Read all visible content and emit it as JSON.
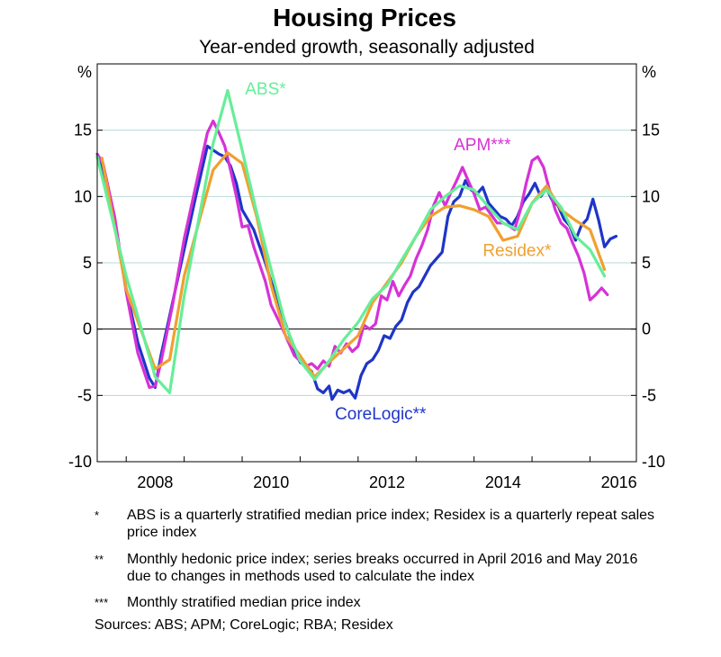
{
  "title": "Housing Prices",
  "subtitle": "Year-ended growth, seasonally adjusted",
  "chart_data": {
    "type": "line",
    "title": "Housing Prices",
    "subtitle": "Year-ended growth, seasonally adjusted",
    "ylabel_left": "%",
    "ylabel_right": "%",
    "ylim": [
      -10,
      20
    ],
    "xlim": [
      2007.5,
      2016.8
    ],
    "yticks": [
      -10,
      -5,
      0,
      5,
      10,
      15
    ],
    "ytick_labels": [
      "-10",
      "-5",
      "0",
      "5",
      "10",
      "15"
    ],
    "xticks": [
      2008,
      2010,
      2012,
      2014,
      2016
    ],
    "xtick_labels": [
      "2008",
      "2010",
      "2012",
      "2014",
      "2016"
    ],
    "grid": "horizontal",
    "series": [
      {
        "name": "CoreLogic**",
        "color": "#1f35c8",
        "points": [
          [
            2007.5,
            13
          ],
          [
            2007.6,
            12
          ],
          [
            2007.8,
            8
          ],
          [
            2008.0,
            3
          ],
          [
            2008.2,
            -1
          ],
          [
            2008.4,
            -3.7
          ],
          [
            2008.5,
            -4.4
          ],
          [
            2008.6,
            -2
          ],
          [
            2008.8,
            2
          ],
          [
            2009.0,
            6
          ],
          [
            2009.2,
            10
          ],
          [
            2009.4,
            13.8
          ],
          [
            2009.5,
            13.5
          ],
          [
            2009.6,
            13.2
          ],
          [
            2009.7,
            13
          ],
          [
            2009.8,
            12.3
          ],
          [
            2009.9,
            11
          ],
          [
            2010.0,
            9
          ],
          [
            2010.2,
            7.5
          ],
          [
            2010.4,
            5
          ],
          [
            2010.5,
            3.6
          ],
          [
            2010.7,
            1
          ],
          [
            2010.9,
            -1.5
          ],
          [
            2011.0,
            -2.5
          ],
          [
            2011.1,
            -2.8
          ],
          [
            2011.2,
            -3.2
          ],
          [
            2011.3,
            -4.5
          ],
          [
            2011.4,
            -4.8
          ],
          [
            2011.5,
            -4.3
          ],
          [
            2011.55,
            -5.3
          ],
          [
            2011.65,
            -4.6
          ],
          [
            2011.75,
            -4.8
          ],
          [
            2011.85,
            -4.6
          ],
          [
            2011.95,
            -5.2
          ],
          [
            2012.05,
            -3.5
          ],
          [
            2012.15,
            -2.6
          ],
          [
            2012.25,
            -2.3
          ],
          [
            2012.35,
            -1.6
          ],
          [
            2012.45,
            -0.5
          ],
          [
            2012.55,
            -0.7
          ],
          [
            2012.65,
            0.2
          ],
          [
            2012.75,
            0.7
          ],
          [
            2012.85,
            2
          ],
          [
            2012.95,
            2.8
          ],
          [
            2013.05,
            3.2
          ],
          [
            2013.15,
            4
          ],
          [
            2013.25,
            4.8
          ],
          [
            2013.35,
            5.3
          ],
          [
            2013.45,
            5.8
          ],
          [
            2013.55,
            8.5
          ],
          [
            2013.65,
            9.6
          ],
          [
            2013.75,
            10
          ],
          [
            2013.85,
            11.2
          ],
          [
            2013.95,
            10.5
          ],
          [
            2014.05,
            10.2
          ],
          [
            2014.15,
            10.7
          ],
          [
            2014.25,
            9.5
          ],
          [
            2014.35,
            9
          ],
          [
            2014.45,
            8.5
          ],
          [
            2014.55,
            8.3
          ],
          [
            2014.65,
            7.8
          ],
          [
            2014.75,
            8.5
          ],
          [
            2014.85,
            9.6
          ],
          [
            2014.95,
            10.2
          ],
          [
            2015.05,
            11
          ],
          [
            2015.15,
            10
          ],
          [
            2015.25,
            10.6
          ],
          [
            2015.35,
            9.7
          ],
          [
            2015.45,
            9.3
          ],
          [
            2015.55,
            8.3
          ],
          [
            2015.65,
            7.8
          ],
          [
            2015.75,
            6.7
          ],
          [
            2015.85,
            7.8
          ],
          [
            2015.95,
            8.3
          ],
          [
            2016.05,
            9.8
          ],
          [
            2016.15,
            8.2
          ],
          [
            2016.25,
            6.2
          ],
          [
            2016.35,
            6.8
          ],
          [
            2016.45,
            7
          ]
        ]
      },
      {
        "name": "APM***",
        "color": "#d632d6",
        "points": [
          [
            2007.5,
            13.2
          ],
          [
            2007.6,
            12.5
          ],
          [
            2007.8,
            8.5
          ],
          [
            2008.0,
            2.8
          ],
          [
            2008.2,
            -1.8
          ],
          [
            2008.4,
            -4.4
          ],
          [
            2008.5,
            -4.3
          ],
          [
            2008.6,
            -2.5
          ],
          [
            2008.8,
            1.8
          ],
          [
            2009.0,
            6.8
          ],
          [
            2009.2,
            10.8
          ],
          [
            2009.4,
            14.8
          ],
          [
            2009.5,
            15.7
          ],
          [
            2009.6,
            14.8
          ],
          [
            2009.7,
            13.8
          ],
          [
            2009.8,
            12
          ],
          [
            2009.9,
            10
          ],
          [
            2010.0,
            7.7
          ],
          [
            2010.1,
            7.8
          ],
          [
            2010.2,
            6.2
          ],
          [
            2010.4,
            3.6
          ],
          [
            2010.5,
            1.8
          ],
          [
            2010.7,
            0
          ],
          [
            2010.9,
            -2
          ],
          [
            2011.0,
            -2.4
          ],
          [
            2011.1,
            -2.8
          ],
          [
            2011.2,
            -2.6
          ],
          [
            2011.3,
            -3
          ],
          [
            2011.4,
            -2.4
          ],
          [
            2011.5,
            -2.8
          ],
          [
            2011.6,
            -1.3
          ],
          [
            2011.7,
            -1.8
          ],
          [
            2011.8,
            -1.1
          ],
          [
            2011.9,
            -1.7
          ],
          [
            2012.0,
            -1.3
          ],
          [
            2012.1,
            0.3
          ],
          [
            2012.2,
            0
          ],
          [
            2012.3,
            0.4
          ],
          [
            2012.4,
            2.5
          ],
          [
            2012.5,
            2.2
          ],
          [
            2012.6,
            3.6
          ],
          [
            2012.7,
            2.5
          ],
          [
            2012.8,
            3.3
          ],
          [
            2012.9,
            4
          ],
          [
            2013.0,
            5.3
          ],
          [
            2013.1,
            6.3
          ],
          [
            2013.2,
            7.5
          ],
          [
            2013.3,
            9.3
          ],
          [
            2013.4,
            10.3
          ],
          [
            2013.5,
            9.3
          ],
          [
            2013.6,
            10.3
          ],
          [
            2013.7,
            11.2
          ],
          [
            2013.8,
            12.2
          ],
          [
            2013.9,
            11.2
          ],
          [
            2014.0,
            10.2
          ],
          [
            2014.1,
            9
          ],
          [
            2014.2,
            9.2
          ],
          [
            2014.3,
            8.6
          ],
          [
            2014.4,
            8
          ],
          [
            2014.5,
            8
          ],
          [
            2014.6,
            7.8
          ],
          [
            2014.7,
            7.5
          ],
          [
            2014.8,
            9
          ],
          [
            2014.9,
            11
          ],
          [
            2015.0,
            12.7
          ],
          [
            2015.1,
            13
          ],
          [
            2015.2,
            12.2
          ],
          [
            2015.3,
            10.5
          ],
          [
            2015.4,
            9
          ],
          [
            2015.5,
            8
          ],
          [
            2015.6,
            7.6
          ],
          [
            2015.7,
            6.5
          ],
          [
            2015.8,
            5.5
          ],
          [
            2015.9,
            4.2
          ],
          [
            2016.0,
            2.2
          ],
          [
            2016.1,
            2.6
          ],
          [
            2016.2,
            3.1
          ],
          [
            2016.3,
            2.6
          ]
        ]
      },
      {
        "name": "Residex*",
        "color": "#f0a030",
        "points": [
          [
            2007.58,
            12.9
          ],
          [
            2008.0,
            3
          ],
          [
            2008.5,
            -3
          ],
          [
            2008.75,
            -2.3
          ],
          [
            2009.0,
            4
          ],
          [
            2009.5,
            12
          ],
          [
            2009.75,
            13.3
          ],
          [
            2010.0,
            12.5
          ],
          [
            2010.25,
            8.5
          ],
          [
            2010.5,
            3.3
          ],
          [
            2010.75,
            -0.5
          ],
          [
            2011.0,
            -2
          ],
          [
            2011.25,
            -3.6
          ],
          [
            2011.5,
            -2.5
          ],
          [
            2011.75,
            -1.5
          ],
          [
            2012.0,
            -0.5
          ],
          [
            2012.25,
            2
          ],
          [
            2012.5,
            3.5
          ],
          [
            2012.75,
            5
          ],
          [
            2013.0,
            7
          ],
          [
            2013.25,
            8.5
          ],
          [
            2013.5,
            9.2
          ],
          [
            2013.75,
            9.3
          ],
          [
            2014.0,
            9
          ],
          [
            2014.25,
            8.5
          ],
          [
            2014.5,
            6.7
          ],
          [
            2014.75,
            7
          ],
          [
            2015.0,
            9.5
          ],
          [
            2015.25,
            10.8
          ],
          [
            2015.5,
            9
          ],
          [
            2015.75,
            8.2
          ],
          [
            2016.0,
            7.5
          ],
          [
            2016.25,
            4.5
          ]
        ]
      },
      {
        "name": "ABS*",
        "color": "#66ee99",
        "points": [
          [
            2007.5,
            13
          ],
          [
            2008.0,
            4
          ],
          [
            2008.5,
            -3.6
          ],
          [
            2008.75,
            -4.8
          ],
          [
            2009.0,
            2.5
          ],
          [
            2009.5,
            14
          ],
          [
            2009.75,
            18
          ],
          [
            2010.0,
            13.5
          ],
          [
            2010.25,
            8.8
          ],
          [
            2010.5,
            4.5
          ],
          [
            2010.75,
            0.3
          ],
          [
            2011.0,
            -2.4
          ],
          [
            2011.25,
            -3.8
          ],
          [
            2011.5,
            -2.4
          ],
          [
            2011.75,
            -0.8
          ],
          [
            2012.0,
            0.5
          ],
          [
            2012.25,
            2.3
          ],
          [
            2012.5,
            3.3
          ],
          [
            2012.75,
            5.2
          ],
          [
            2013.0,
            7
          ],
          [
            2013.25,
            9
          ],
          [
            2013.5,
            10
          ],
          [
            2013.75,
            10.8
          ],
          [
            2014.0,
            10.5
          ],
          [
            2014.25,
            9.2
          ],
          [
            2014.5,
            8
          ],
          [
            2014.75,
            7.5
          ],
          [
            2015.0,
            9.5
          ],
          [
            2015.25,
            10.5
          ],
          [
            2015.5,
            9.2
          ],
          [
            2015.75,
            7
          ],
          [
            2016.0,
            6
          ],
          [
            2016.25,
            4
          ]
        ]
      }
    ],
    "labels": [
      {
        "text": "ABS*",
        "series": "ABS*",
        "x": 2010.05,
        "y": 17.7,
        "anchor": "start"
      },
      {
        "text": "APM***",
        "series": "APM***",
        "x": 2013.65,
        "y": 13.5,
        "anchor": "start"
      },
      {
        "text": "Residex*",
        "series": "Residex*",
        "x": 2014.15,
        "y": 5.5,
        "anchor": "start"
      },
      {
        "text": "CoreLogic**",
        "series": "CoreLogic**",
        "x": 2011.6,
        "y": -6.8,
        "anchor": "start"
      }
    ]
  },
  "footnotes": [
    {
      "mark": "*",
      "text": "ABS is a quarterly stratified median price index; Residex is a quarterly repeat sales price index"
    },
    {
      "mark": "**",
      "text": "Monthly hedonic price index; series breaks occurred in April 2016 and May 2016 due to changes in methods used to calculate the index"
    },
    {
      "mark": "***",
      "text": "Monthly stratified median price index"
    }
  ],
  "sources": "Sources:  ABS; APM; CoreLogic; RBA; Residex"
}
